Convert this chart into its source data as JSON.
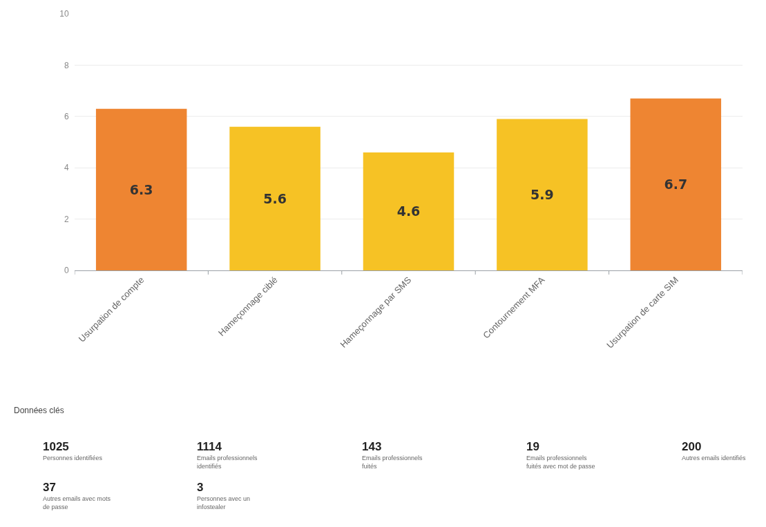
{
  "chart_data": [
    {
      "type": "bar",
      "categories": [
        "Usurpation de compte",
        "Hameçonnage ciblé",
        "Hameçonnage par SMS",
        "Contournement MFA",
        "Usurpation de carte SIM"
      ],
      "values": [
        6.3,
        5.6,
        4.6,
        5.9,
        6.7
      ],
      "colors": [
        "#ee8532",
        "#f6c225",
        "#f6c225",
        "#f6c225",
        "#ee8532"
      ],
      "ylim": [
        0,
        10
      ],
      "yticks": [
        0,
        2,
        4,
        6,
        8,
        10
      ],
      "grid": "y",
      "data_labels": true
    },
    {
      "type": "other",
      "title": "Données clés",
      "annotations": [
        "1025",
        "Personnes identifiées",
        "1114",
        "Emails professionnels identifiés",
        "143",
        "Emails professionnels fuités",
        "19",
        "Emails professionnels fuités avec mot de passe",
        "200",
        "Autres emails identifiés",
        "37",
        "Autres emails avec mots de passe",
        "3",
        "Personnes avec un infostealer"
      ]
    }
  ]
}
